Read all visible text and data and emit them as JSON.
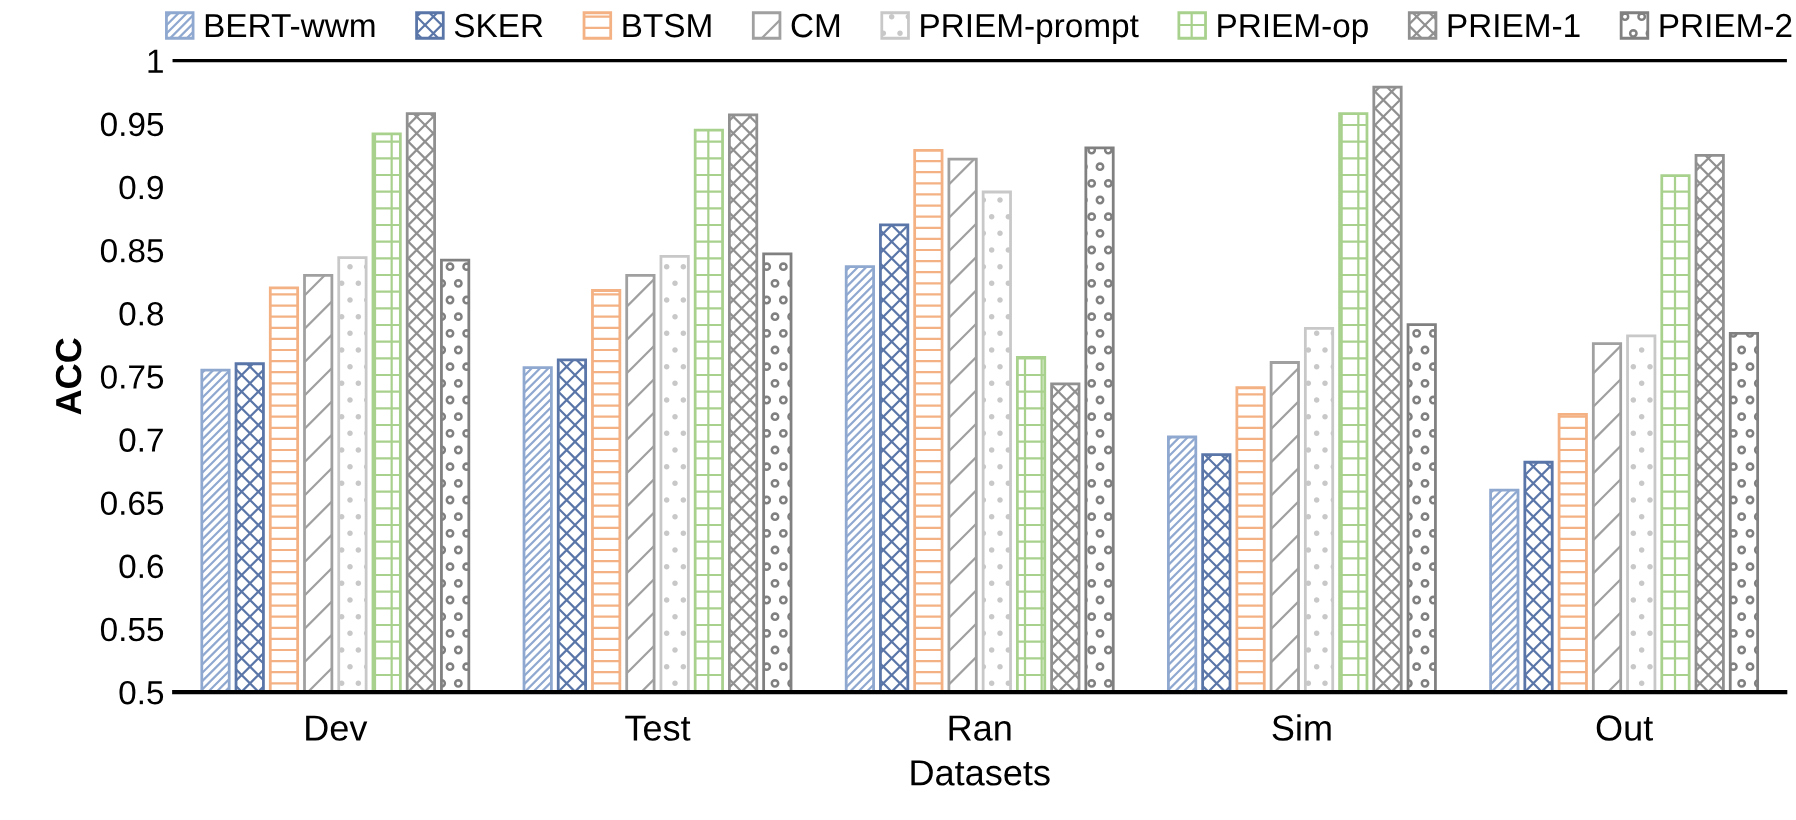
{
  "chart_data": {
    "type": "bar",
    "xlabel": "Datasets",
    "ylabel": "ACC",
    "categories": [
      "Dev",
      "Test",
      "Ran",
      "Sim",
      "Out"
    ],
    "series": [
      {
        "name": "BERT-wwm",
        "color": "#8fa8d0",
        "values": [
          0.755,
          0.757,
          0.837,
          0.702,
          0.66
        ]
      },
      {
        "name": "SKER",
        "color": "#5a76a8",
        "values": [
          0.76,
          0.763,
          0.87,
          0.688,
          0.682
        ]
      },
      {
        "name": "BTSM",
        "color": "#f4b183",
        "values": [
          0.82,
          0.818,
          0.929,
          0.741,
          0.72
        ]
      },
      {
        "name": "CM",
        "color": "#a0a0a0",
        "values": [
          0.83,
          0.83,
          0.922,
          0.761,
          0.776
        ]
      },
      {
        "name": "PRIEM-prompt",
        "color": "#c8c8c8",
        "values": [
          0.844,
          0.845,
          0.896,
          0.788,
          0.782
        ]
      },
      {
        "name": "PRIEM-op",
        "color": "#a9d18e",
        "values": [
          0.942,
          0.945,
          0.765,
          0.958,
          0.909
        ]
      },
      {
        "name": "PRIEM-1",
        "color": "#909090",
        "values": [
          0.958,
          0.957,
          0.744,
          0.979,
          0.925
        ]
      },
      {
        "name": "PRIEM-2",
        "color": "#808080",
        "values": [
          0.842,
          0.847,
          0.931,
          0.791,
          0.784
        ]
      }
    ],
    "ylim": [
      0.5,
      1
    ],
    "yticks": [
      0.5,
      0.55,
      0.6,
      0.65,
      0.7,
      0.75,
      0.8,
      0.85,
      0.9,
      0.95,
      1
    ],
    "grid": false,
    "legend": "top"
  }
}
